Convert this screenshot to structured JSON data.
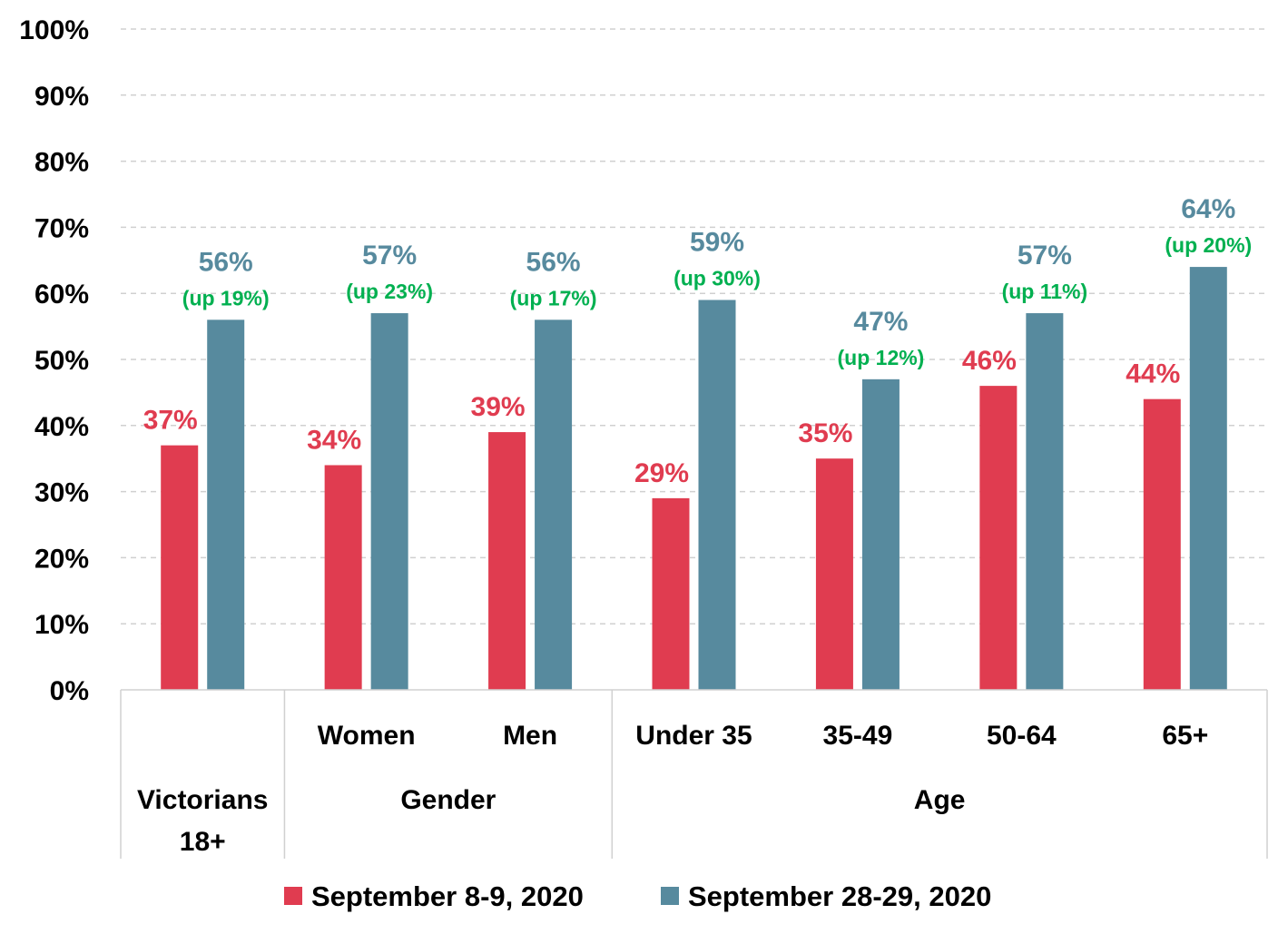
{
  "chart_data": {
    "type": "bar",
    "categories": [
      "",
      "Women",
      "Men",
      "Under 35",
      "35-49",
      "50-64",
      "65+"
    ],
    "groups": [
      {
        "label": "Victorians 18+",
        "lines": [
          "Victorians",
          "18+"
        ],
        "start": 0,
        "end": 0
      },
      {
        "label": "Gender",
        "lines": [
          "Gender"
        ],
        "start": 1,
        "end": 2
      },
      {
        "label": "Age",
        "lines": [
          "Age"
        ],
        "start": 3,
        "end": 6
      }
    ],
    "series": [
      {
        "name": "September 8-9, 2020",
        "color": "#e03c50",
        "values": [
          37,
          34,
          39,
          29,
          35,
          46,
          44
        ]
      },
      {
        "name": "September 28-29, 2020",
        "color": "#578a9e",
        "values": [
          56,
          57,
          56,
          59,
          47,
          57,
          64
        ]
      }
    ],
    "value_labels": {
      "series_0": [
        "37%",
        "34%",
        "39%",
        "29%",
        "35%",
        "46%",
        "44%"
      ],
      "series_1": [
        "56%",
        "57%",
        "56%",
        "59%",
        "47%",
        "57%",
        "64%"
      ]
    },
    "change_labels": [
      "(up 19%)",
      "(up 23%)",
      "(up 17%)",
      "(up 30%)",
      "(up 12%)",
      "(up 11%)",
      "(up 20%)"
    ],
    "change_color": "#00b050",
    "ylim": [
      0,
      100
    ],
    "yticks": [
      0,
      10,
      20,
      30,
      40,
      50,
      60,
      70,
      80,
      90,
      100
    ],
    "ytick_labels": [
      "0%",
      "10%",
      "20%",
      "30%",
      "40%",
      "50%",
      "60%",
      "70%",
      "80%",
      "90%",
      "100%"
    ],
    "grid": true,
    "legend_position": "bottom"
  }
}
